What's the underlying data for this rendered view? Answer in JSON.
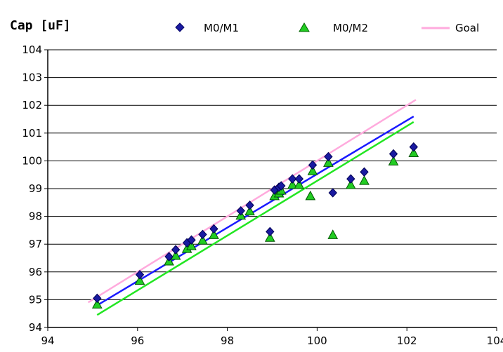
{
  "chart_data": {
    "type": "scatter",
    "title": "Cap [uF]",
    "xlabel": "",
    "ylabel": "",
    "xlim": [
      94,
      104
    ],
    "ylim": [
      94,
      104
    ],
    "x_ticks": [
      94,
      96,
      98,
      100,
      102,
      104
    ],
    "y_ticks": [
      94,
      95,
      96,
      97,
      98,
      99,
      100,
      101,
      102,
      103,
      104
    ],
    "grid": "horizontal",
    "legend_position": "top",
    "series": [
      {
        "name": "M0/M1",
        "kind": "scatter",
        "marker": "diamond",
        "color": "#1a1aa0",
        "points": [
          [
            95.1,
            95.05
          ],
          [
            96.05,
            95.9
          ],
          [
            96.7,
            96.55
          ],
          [
            96.85,
            96.8
          ],
          [
            97.1,
            97.05
          ],
          [
            97.2,
            97.15
          ],
          [
            97.45,
            97.35
          ],
          [
            97.7,
            97.55
          ],
          [
            98.3,
            98.2
          ],
          [
            98.5,
            98.4
          ],
          [
            98.95,
            97.45
          ],
          [
            99.05,
            98.95
          ],
          [
            99.15,
            99.05
          ],
          [
            99.2,
            99.1
          ],
          [
            99.45,
            99.35
          ],
          [
            99.6,
            99.35
          ],
          [
            99.9,
            99.85
          ],
          [
            100.25,
            100.15
          ],
          [
            100.35,
            98.85
          ],
          [
            100.75,
            99.35
          ],
          [
            101.05,
            99.6
          ],
          [
            101.7,
            100.25
          ],
          [
            102.15,
            100.5
          ]
        ]
      },
      {
        "name": "M0/M2",
        "kind": "scatter",
        "marker": "triangle",
        "color": "#22cc22",
        "points": [
          [
            95.1,
            94.85
          ],
          [
            96.05,
            95.7
          ],
          [
            96.7,
            96.4
          ],
          [
            96.85,
            96.6
          ],
          [
            97.1,
            96.85
          ],
          [
            97.2,
            96.95
          ],
          [
            97.45,
            97.15
          ],
          [
            97.7,
            97.35
          ],
          [
            98.3,
            98.05
          ],
          [
            98.5,
            98.2
          ],
          [
            98.95,
            97.25
          ],
          [
            99.05,
            98.75
          ],
          [
            99.15,
            98.85
          ],
          [
            99.2,
            98.95
          ],
          [
            99.45,
            99.15
          ],
          [
            99.6,
            99.15
          ],
          [
            99.85,
            98.75
          ],
          [
            99.9,
            99.65
          ],
          [
            100.25,
            99.95
          ],
          [
            100.35,
            97.35
          ],
          [
            100.75,
            99.15
          ],
          [
            101.05,
            99.3
          ],
          [
            101.7,
            100.0
          ],
          [
            102.15,
            100.3
          ]
        ]
      },
      {
        "name": "",
        "kind": "line",
        "color": "#1a1aff",
        "points": [
          [
            95.05,
            94.75
          ],
          [
            102.15,
            101.6
          ]
        ]
      },
      {
        "name": "",
        "kind": "line",
        "color": "#22e622",
        "points": [
          [
            95.1,
            94.45
          ],
          [
            102.15,
            101.4
          ]
        ]
      },
      {
        "name": "Goal",
        "kind": "line",
        "color": "#ffaadd",
        "points": [
          [
            94.9,
            94.9
          ],
          [
            102.2,
            102.2
          ]
        ]
      }
    ]
  }
}
